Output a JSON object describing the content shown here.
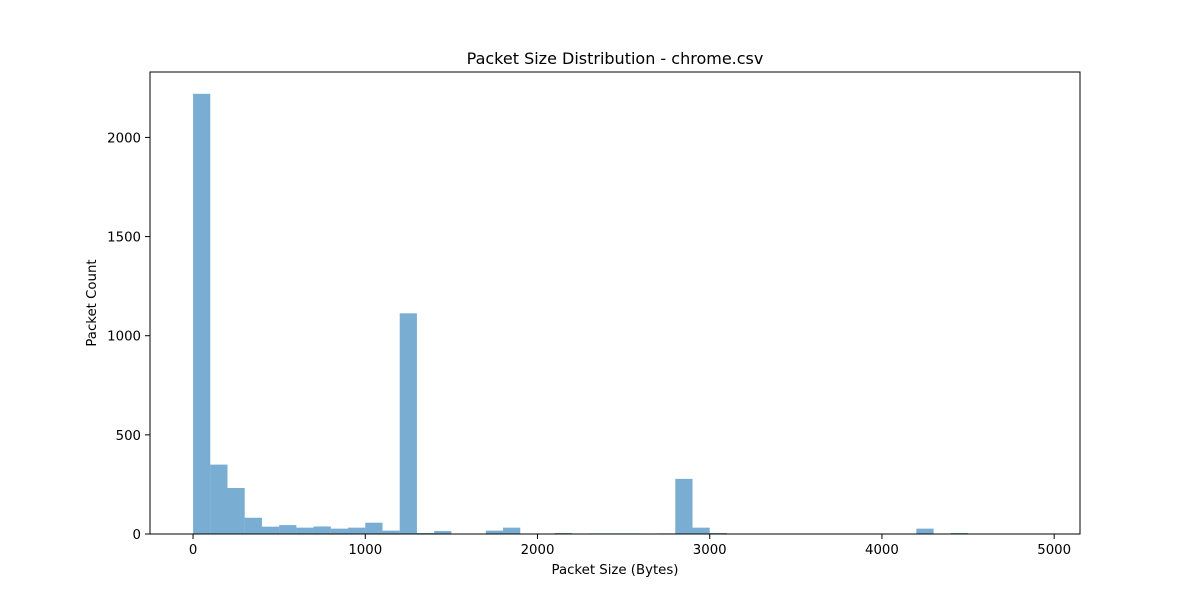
{
  "chart_data": {
    "type": "bar",
    "title": "Packet Size Distribution - chrome.csv",
    "xlabel": "Packet Size (Bytes)",
    "ylabel": "Packet Count",
    "xlim": [
      -250,
      5150
    ],
    "ylim": [
      0,
      2330
    ],
    "xticks": [
      0,
      1000,
      2000,
      3000,
      4000,
      5000
    ],
    "yticks": [
      0,
      500,
      1000,
      1500,
      2000
    ],
    "grid": false,
    "bar_color": "#1f77b4",
    "bar_alpha": 0.6,
    "series": [
      {
        "bins": [
          {
            "x0": 0,
            "x1": 100,
            "y": 2220
          },
          {
            "x0": 100,
            "x1": 200,
            "y": 350
          },
          {
            "x0": 200,
            "x1": 300,
            "y": 232
          },
          {
            "x0": 300,
            "x1": 400,
            "y": 82
          },
          {
            "x0": 400,
            "x1": 500,
            "y": 37
          },
          {
            "x0": 500,
            "x1": 600,
            "y": 45
          },
          {
            "x0": 600,
            "x1": 700,
            "y": 32
          },
          {
            "x0": 700,
            "x1": 800,
            "y": 38
          },
          {
            "x0": 800,
            "x1": 900,
            "y": 27
          },
          {
            "x0": 900,
            "x1": 1000,
            "y": 32
          },
          {
            "x0": 1000,
            "x1": 1100,
            "y": 57
          },
          {
            "x0": 1100,
            "x1": 1200,
            "y": 17
          },
          {
            "x0": 1200,
            "x1": 1300,
            "y": 1113
          },
          {
            "x0": 1300,
            "x1": 1400,
            "y": 5
          },
          {
            "x0": 1400,
            "x1": 1500,
            "y": 15
          },
          {
            "x0": 1700,
            "x1": 1800,
            "y": 17
          },
          {
            "x0": 1800,
            "x1": 1900,
            "y": 32
          },
          {
            "x0": 2100,
            "x1": 2200,
            "y": 5
          },
          {
            "x0": 2300,
            "x1": 2400,
            "y": 3
          },
          {
            "x0": 2400,
            "x1": 2500,
            "y": 3
          },
          {
            "x0": 2500,
            "x1": 2600,
            "y": 3
          },
          {
            "x0": 2700,
            "x1": 2800,
            "y": 3
          },
          {
            "x0": 2800,
            "x1": 2900,
            "y": 278
          },
          {
            "x0": 2900,
            "x1": 3000,
            "y": 32
          },
          {
            "x0": 3000,
            "x1": 3100,
            "y": 5
          },
          {
            "x0": 4200,
            "x1": 4300,
            "y": 27
          },
          {
            "x0": 4400,
            "x1": 4500,
            "y": 5
          }
        ]
      }
    ]
  }
}
